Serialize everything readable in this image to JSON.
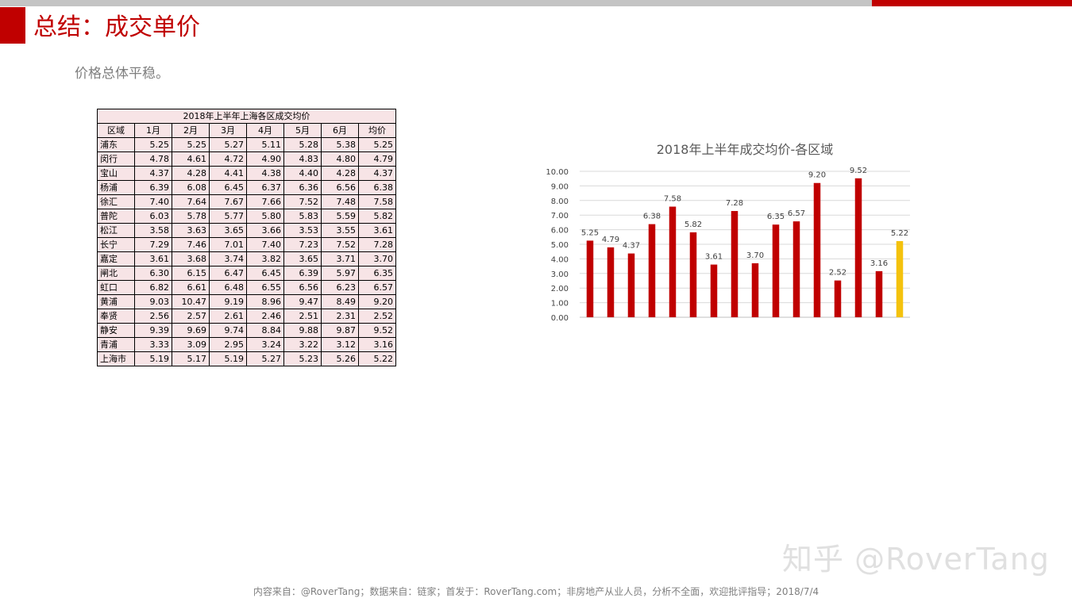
{
  "slide": {
    "title": "总结：成交单价",
    "subtitle": "价格总体平稳。",
    "watermark": "知乎 @RoverTang",
    "footer": "内容来自：@RoverTang；数据来自：链家；首发于：RoverTang.com；非房地产从业人员，分析不全面，欢迎批评指导；2018/7/4"
  },
  "colors": {
    "accent": "#c00000",
    "bar": "#c00000",
    "highlight_bar": "#f4c20d"
  },
  "table": {
    "caption": "2018年上半年上海各区成交均价",
    "headers": [
      "区域",
      "1月",
      "2月",
      "3月",
      "4月",
      "5月",
      "6月",
      "均价"
    ],
    "rows": [
      [
        "浦东",
        "5.25",
        "5.25",
        "5.27",
        "5.11",
        "5.28",
        "5.38",
        "5.25"
      ],
      [
        "闵行",
        "4.78",
        "4.61",
        "4.72",
        "4.90",
        "4.83",
        "4.80",
        "4.79"
      ],
      [
        "宝山",
        "4.37",
        "4.28",
        "4.41",
        "4.38",
        "4.40",
        "4.28",
        "4.37"
      ],
      [
        "杨浦",
        "6.39",
        "6.08",
        "6.45",
        "6.37",
        "6.36",
        "6.56",
        "6.38"
      ],
      [
        "徐汇",
        "7.40",
        "7.64",
        "7.67",
        "7.66",
        "7.52",
        "7.48",
        "7.58"
      ],
      [
        "普陀",
        "6.03",
        "5.78",
        "5.77",
        "5.80",
        "5.83",
        "5.59",
        "5.82"
      ],
      [
        "松江",
        "3.58",
        "3.63",
        "3.65",
        "3.66",
        "3.53",
        "3.55",
        "3.61"
      ],
      [
        "长宁",
        "7.29",
        "7.46",
        "7.01",
        "7.40",
        "7.23",
        "7.52",
        "7.28"
      ],
      [
        "嘉定",
        "3.61",
        "3.68",
        "3.74",
        "3.82",
        "3.65",
        "3.71",
        "3.70"
      ],
      [
        "闸北",
        "6.30",
        "6.15",
        "6.47",
        "6.45",
        "6.39",
        "5.97",
        "6.35"
      ],
      [
        "虹口",
        "6.82",
        "6.61",
        "6.48",
        "6.55",
        "6.56",
        "6.23",
        "6.57"
      ],
      [
        "黄浦",
        "9.03",
        "10.47",
        "9.19",
        "8.96",
        "9.47",
        "8.49",
        "9.20"
      ],
      [
        "奉贤",
        "2.56",
        "2.57",
        "2.61",
        "2.46",
        "2.51",
        "2.31",
        "2.52"
      ],
      [
        "静安",
        "9.39",
        "9.69",
        "9.74",
        "8.84",
        "9.88",
        "9.87",
        "9.52"
      ],
      [
        "青浦",
        "3.33",
        "3.09",
        "2.95",
        "3.24",
        "3.22",
        "3.12",
        "3.16"
      ],
      [
        "上海市",
        "5.19",
        "5.17",
        "5.19",
        "5.27",
        "5.23",
        "5.26",
        "5.22"
      ]
    ]
  },
  "chart_data": {
    "type": "bar",
    "title": "2018年上半年成交均价-各区域",
    "categories": [
      "浦东",
      "闵行",
      "宝山",
      "杨浦",
      "徐汇",
      "普陀",
      "松江",
      "长宁",
      "嘉定",
      "闸北",
      "虹口",
      "黄浦",
      "奉贤",
      "静安",
      "青浦",
      "上海市"
    ],
    "values": [
      5.25,
      4.79,
      4.37,
      6.38,
      7.58,
      5.82,
      3.61,
      7.28,
      3.7,
      6.35,
      6.57,
      9.2,
      2.52,
      9.52,
      3.16,
      5.22
    ],
    "data_labels": [
      "5.25",
      "4.79",
      "4.37",
      "6.38",
      "7.58",
      "5.82",
      "3.61",
      "7.28",
      "3.70",
      "6.35",
      "6.57",
      "9.20",
      "2.52",
      "9.52",
      "3.16",
      "5.22"
    ],
    "highlight_index": 15,
    "ylim": [
      0,
      10
    ],
    "yticks": [
      "0.00",
      "1.00",
      "2.00",
      "3.00",
      "4.00",
      "5.00",
      "6.00",
      "7.00",
      "8.00",
      "9.00",
      "10.00"
    ],
    "grid": true,
    "legend": "none",
    "show_x_tick_labels": false,
    "xlabel": "",
    "ylabel": ""
  }
}
